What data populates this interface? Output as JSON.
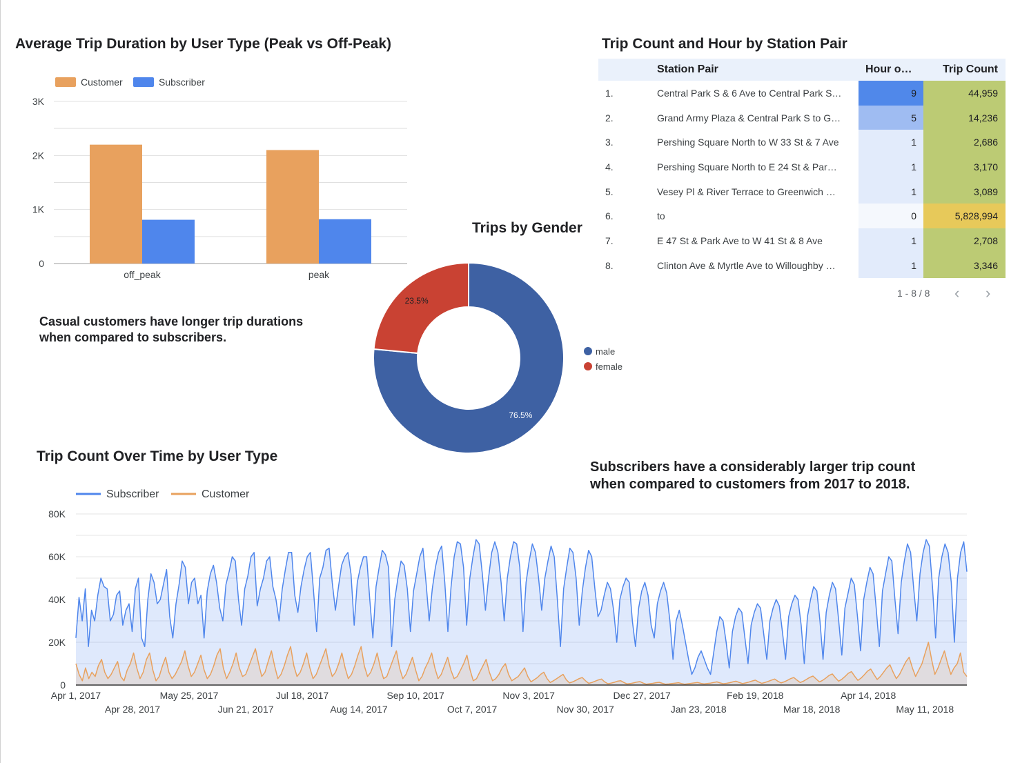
{
  "bar_chart": {
    "title": "Average Trip Duration by User Type (Peak vs Off-Peak)",
    "legend": [
      {
        "name": "Customer",
        "color": "#e8a15e"
      },
      {
        "name": "Subscriber",
        "color": "#4f86ec"
      }
    ],
    "y_ticks": [
      "0",
      "1K",
      "2K",
      "3K"
    ]
  },
  "bar_note": {
    "line1": "Casual customers have longer trip durations",
    "line2": "when compared to subscribers."
  },
  "donut": {
    "title": "Trips by Gender",
    "legend": [
      {
        "name": "male",
        "color": "#3e61a3"
      },
      {
        "name": "female",
        "color": "#c94233"
      }
    ],
    "labels": [
      "76.5%",
      "23.5%"
    ]
  },
  "table": {
    "title": "Trip Count and Hour by Station Pair",
    "columns": [
      "Station Pair",
      "Hour o…",
      "Trip Count"
    ],
    "rows": [
      {
        "num": "1.",
        "pair": "Central Park S & 6 Ave to Central Park S…",
        "hour": "9",
        "hour_bg": "#5088ea",
        "trips": "44,959",
        "trips_bg": "#bccb74"
      },
      {
        "num": "2.",
        "pair": "Grand Army Plaza & Central Park S to G…",
        "hour": "5",
        "hour_bg": "#9fbcf2",
        "trips": "14,236",
        "trips_bg": "#bccb74"
      },
      {
        "num": "3.",
        "pair": "Pershing Square North to W 33 St & 7 Ave",
        "hour": "1",
        "hour_bg": "#e2ebfb",
        "trips": "2,686",
        "trips_bg": "#bccb74"
      },
      {
        "num": "4.",
        "pair": "Pershing Square North to E 24 St & Par…",
        "hour": "1",
        "hour_bg": "#e2ebfb",
        "trips": "3,170",
        "trips_bg": "#bccb74"
      },
      {
        "num": "5.",
        "pair": "Vesey Pl & River Terrace to Greenwich …",
        "hour": "1",
        "hour_bg": "#e2ebfb",
        "trips": "3,089",
        "trips_bg": "#bccb74"
      },
      {
        "num": "6.",
        "pair": "to",
        "hour": "0",
        "hour_bg": "#f5f8fd",
        "trips": "5,828,994",
        "trips_bg": "#e7c95a"
      },
      {
        "num": "7.",
        "pair": "E 47 St & Park Ave to W 41 St & 8 Ave",
        "hour": "1",
        "hour_bg": "#e2ebfb",
        "trips": "2,708",
        "trips_bg": "#bccb74"
      },
      {
        "num": "8.",
        "pair": "Clinton Ave & Myrtle Ave to Willoughby …",
        "hour": "1",
        "hour_bg": "#e2ebfb",
        "trips": "3,346",
        "trips_bg": "#bccb74"
      }
    ],
    "pager": "1 - 8 / 8",
    "prev_icon": "‹",
    "next_icon": "›"
  },
  "line_chart": {
    "title": "Trip Count Over Time by User Type",
    "legend": [
      {
        "name": "Subscriber",
        "color": "#4f86ec"
      },
      {
        "name": "Customer",
        "color": "#e8a15e"
      }
    ],
    "y_ticks": [
      "0",
      "20K",
      "40K",
      "60K",
      "80K"
    ],
    "x_ticks_top": [
      "Apr 1, 2017",
      "May 25, 2017",
      "Jul 18, 2017",
      "Sep 10, 2017",
      "Nov 3, 2017",
      "Dec 27, 2017",
      "Feb 19, 2018",
      "Apr 14, 2018"
    ],
    "x_ticks_bottom": [
      "Apr 28, 2017",
      "Jun 21, 2017",
      "Aug 14, 2017",
      "Oct 7, 2017",
      "Nov 30, 2017",
      "Jan 23, 2018",
      "Mar 18, 2018",
      "May 11, 2018"
    ]
  },
  "line_note": {
    "line1": "Subscribers have a considerably larger trip count",
    "line2": "when compared to customers from 2017 to 2018."
  },
  "chart_data": [
    {
      "type": "bar",
      "title": "Average Trip Duration by User Type (Peak vs Off-Peak)",
      "categories": [
        "off_peak",
        "peak"
      ],
      "series": [
        {
          "name": "Customer",
          "values": [
            2200,
            2100
          ]
        },
        {
          "name": "Subscriber",
          "values": [
            810,
            820
          ]
        }
      ],
      "ylim": [
        0,
        3000
      ],
      "legend": "top-left",
      "grid": true
    },
    {
      "type": "pie",
      "title": "Trips by Gender",
      "categories": [
        "male",
        "female"
      ],
      "values": [
        76.5,
        23.5
      ],
      "donut": true,
      "legend": "right"
    },
    {
      "type": "line",
      "title": "Trip Count Over Time by User Type",
      "x_start": "2017-04-01",
      "x_end": "2018-05-31",
      "ylim": [
        0,
        80000
      ],
      "legend": "top-left",
      "grid": true,
      "series": [
        {
          "name": "Subscriber",
          "values": [
            22000,
            41000,
            30000,
            45000,
            18000,
            35000,
            30000,
            42000,
            50000,
            46000,
            45000,
            30000,
            33000,
            42000,
            44000,
            28000,
            35000,
            38000,
            25000,
            45000,
            50000,
            22000,
            18000,
            40000,
            52000,
            48000,
            38000,
            40000,
            47000,
            54000,
            32000,
            22000,
            38000,
            47000,
            58000,
            55000,
            38000,
            48000,
            50000,
            38000,
            42000,
            22000,
            44000,
            52000,
            56000,
            48000,
            36000,
            30000,
            47000,
            53000,
            60000,
            58000,
            40000,
            28000,
            45000,
            51000,
            60000,
            62000,
            37000,
            45000,
            50000,
            58000,
            60000,
            46000,
            40000,
            30000,
            45000,
            54000,
            62000,
            62000,
            42000,
            34000,
            46000,
            54000,
            60000,
            62000,
            44000,
            25000,
            50000,
            55000,
            63000,
            64000,
            48000,
            35000,
            46000,
            56000,
            60000,
            62000,
            52000,
            28000,
            48000,
            55000,
            60000,
            60000,
            40000,
            22000,
            46000,
            55000,
            63000,
            61000,
            55000,
            18000,
            40000,
            50000,
            58000,
            56000,
            45000,
            25000,
            44000,
            52000,
            60000,
            64000,
            48000,
            30000,
            45000,
            55000,
            62000,
            65000,
            48000,
            25000,
            46000,
            60000,
            67000,
            66000,
            55000,
            28000,
            50000,
            60000,
            68000,
            66000,
            52000,
            35000,
            50000,
            62000,
            67000,
            62000,
            48000,
            30000,
            50000,
            60000,
            67000,
            66000,
            55000,
            25000,
            48000,
            58000,
            66000,
            62000,
            50000,
            35000,
            50000,
            58000,
            65000,
            60000,
            40000,
            18000,
            45000,
            55000,
            64000,
            62000,
            50000,
            28000,
            44000,
            55000,
            63000,
            60000,
            45000,
            32000,
            35000,
            42000,
            48000,
            45000,
            35000,
            20000,
            40000,
            46000,
            50000,
            48000,
            30000,
            18000,
            36000,
            44000,
            48000,
            42000,
            28000,
            22000,
            38000,
            44000,
            48000,
            43000,
            30000,
            12000,
            30000,
            35000,
            28000,
            20000,
            12000,
            5000,
            8000,
            13000,
            16000,
            12000,
            8000,
            5000,
            15000,
            25000,
            32000,
            30000,
            20000,
            8000,
            25000,
            32000,
            36000,
            34000,
            22000,
            10000,
            28000,
            34000,
            38000,
            36000,
            24000,
            12000,
            30000,
            36000,
            40000,
            37000,
            25000,
            12000,
            32000,
            38000,
            42000,
            40000,
            28000,
            10000,
            32000,
            40000,
            46000,
            44000,
            30000,
            12000,
            34000,
            42000,
            48000,
            45000,
            30000,
            14000,
            36000,
            43000,
            50000,
            47000,
            32000,
            16000,
            40000,
            48000,
            55000,
            52000,
            36000,
            18000,
            44000,
            52000,
            60000,
            58000,
            40000,
            24000,
            48000,
            58000,
            66000,
            62000,
            45000,
            30000,
            52000,
            62000,
            68000,
            65000,
            46000,
            22000,
            50000,
            60000,
            66000,
            62000,
            48000,
            20000,
            50000,
            62000,
            67000,
            53000
          ]
        },
        {
          "name": "Customer",
          "values": [
            10000,
            5000,
            2000,
            8000,
            3000,
            6000,
            4000,
            9000,
            12000,
            6000,
            3000,
            5000,
            8000,
            11000,
            4000,
            2000,
            7000,
            10000,
            15000,
            8000,
            3000,
            6000,
            12000,
            15000,
            7000,
            2000,
            4000,
            9000,
            13000,
            6000,
            3000,
            5000,
            8000,
            11000,
            16000,
            9000,
            4000,
            6000,
            10000,
            14000,
            7000,
            3000,
            5000,
            9000,
            14000,
            17000,
            8000,
            3000,
            6000,
            10000,
            15000,
            8000,
            4000,
            5000,
            9000,
            13000,
            17000,
            10000,
            4000,
            6000,
            11000,
            16000,
            9000,
            3000,
            5000,
            9000,
            14000,
            18000,
            9000,
            4000,
            6000,
            10000,
            15000,
            8000,
            3000,
            5000,
            9000,
            13000,
            17000,
            9000,
            4000,
            6000,
            10000,
            15000,
            8000,
            3000,
            5000,
            9000,
            14000,
            18000,
            9000,
            4000,
            6000,
            10000,
            15000,
            8000,
            3000,
            4000,
            8000,
            12000,
            16000,
            8000,
            3000,
            5000,
            9000,
            13000,
            7000,
            2000,
            4000,
            8000,
            11000,
            15000,
            8000,
            3000,
            5000,
            9000,
            13000,
            7000,
            3000,
            4000,
            7000,
            10000,
            14000,
            7000,
            2000,
            3000,
            6000,
            9000,
            12000,
            6000,
            2000,
            3000,
            5000,
            8000,
            10000,
            5000,
            2000,
            3000,
            4000,
            6000,
            8000,
            4000,
            1500,
            2500,
            3500,
            5000,
            6000,
            3000,
            1200,
            2000,
            3000,
            4000,
            5000,
            2500,
            1000,
            1500,
            2200,
            3000,
            3500,
            2000,
            800,
            1200,
            1800,
            2400,
            2800,
            1500,
            600,
            900,
            1300,
            1800,
            2000,
            1200,
            500,
            700,
            1000,
            1400,
            1600,
            900,
            400,
            600,
            800,
            1100,
            1300,
            800,
            400,
            500,
            700,
            900,
            1100,
            700,
            400,
            600,
            800,
            1000,
            1200,
            800,
            500,
            700,
            900,
            1200,
            1500,
            1000,
            600,
            800,
            1100,
            1500,
            1800,
            1200,
            700,
            1000,
            1400,
            1900,
            2300,
            1500,
            800,
            1200,
            1700,
            2300,
            2800,
            1800,
            1000,
            1500,
            2200,
            3000,
            3500,
            2300,
            1200,
            1800,
            2700,
            3600,
            4200,
            2800,
            1500,
            2200,
            3300,
            4500,
            5200,
            3400,
            1800,
            2700,
            4000,
            5500,
            6300,
            4100,
            2200,
            3300,
            4800,
            6500,
            7500,
            5000,
            2600,
            4000,
            6000,
            8000,
            9500,
            6000,
            3000,
            5000,
            8000,
            11000,
            13000,
            8000,
            4000,
            7000,
            10000,
            15000,
            20000,
            12000,
            5000,
            8000,
            12000,
            16000,
            10000,
            5000,
            8000,
            10000,
            15000,
            6000,
            4000
          ]
        }
      ]
    }
  ]
}
